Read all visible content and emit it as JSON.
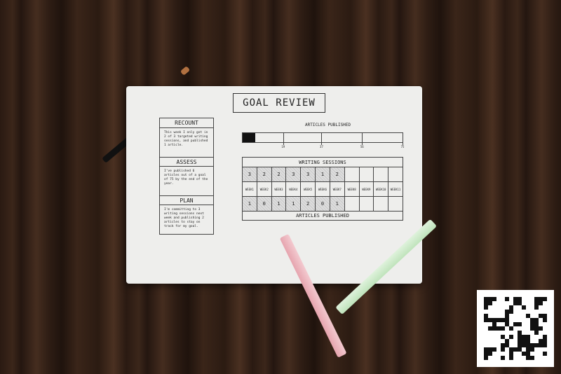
{
  "sheet": {
    "title": "GOAL REVIEW",
    "sections": [
      {
        "heading": "RECOUNT",
        "text": "This week I only got in 2 of 3 targeted writing sessions, and published 1 article."
      },
      {
        "heading": "ASSESS",
        "text": "I've published 6 articles out of a goal of 75 by the end of the year."
      },
      {
        "heading": "PLAN",
        "text": "I'm committing to 3 writing sessions next week and publishing 2 articles to stay on track for my goal."
      }
    ],
    "progress": {
      "label": "ARTICLES PUBLISHED",
      "value": 6,
      "goal": 75,
      "ticks": [
        "19",
        "37",
        "56",
        "75"
      ]
    },
    "table": {
      "header": "WRITING SESSIONS",
      "footer": "ARTICLES PUBLISHED",
      "week_word": "WEEK",
      "weeks": [
        "1",
        "2",
        "3",
        "4",
        "5",
        "6",
        "7",
        "8",
        "9",
        "10",
        "11"
      ],
      "sessions": [
        "3",
        "2",
        "2",
        "3",
        "3",
        "1",
        "2",
        "",
        "",
        "",
        ""
      ],
      "articles": [
        "1",
        "0",
        "1",
        "1",
        "2",
        "0",
        "1",
        "",
        "",
        "",
        ""
      ]
    }
  },
  "colors": {
    "wood": "#2e1d14",
    "paper": "#eeeeec",
    "red_marker": "#d23a4a",
    "green_marker": "#4fd04a"
  }
}
